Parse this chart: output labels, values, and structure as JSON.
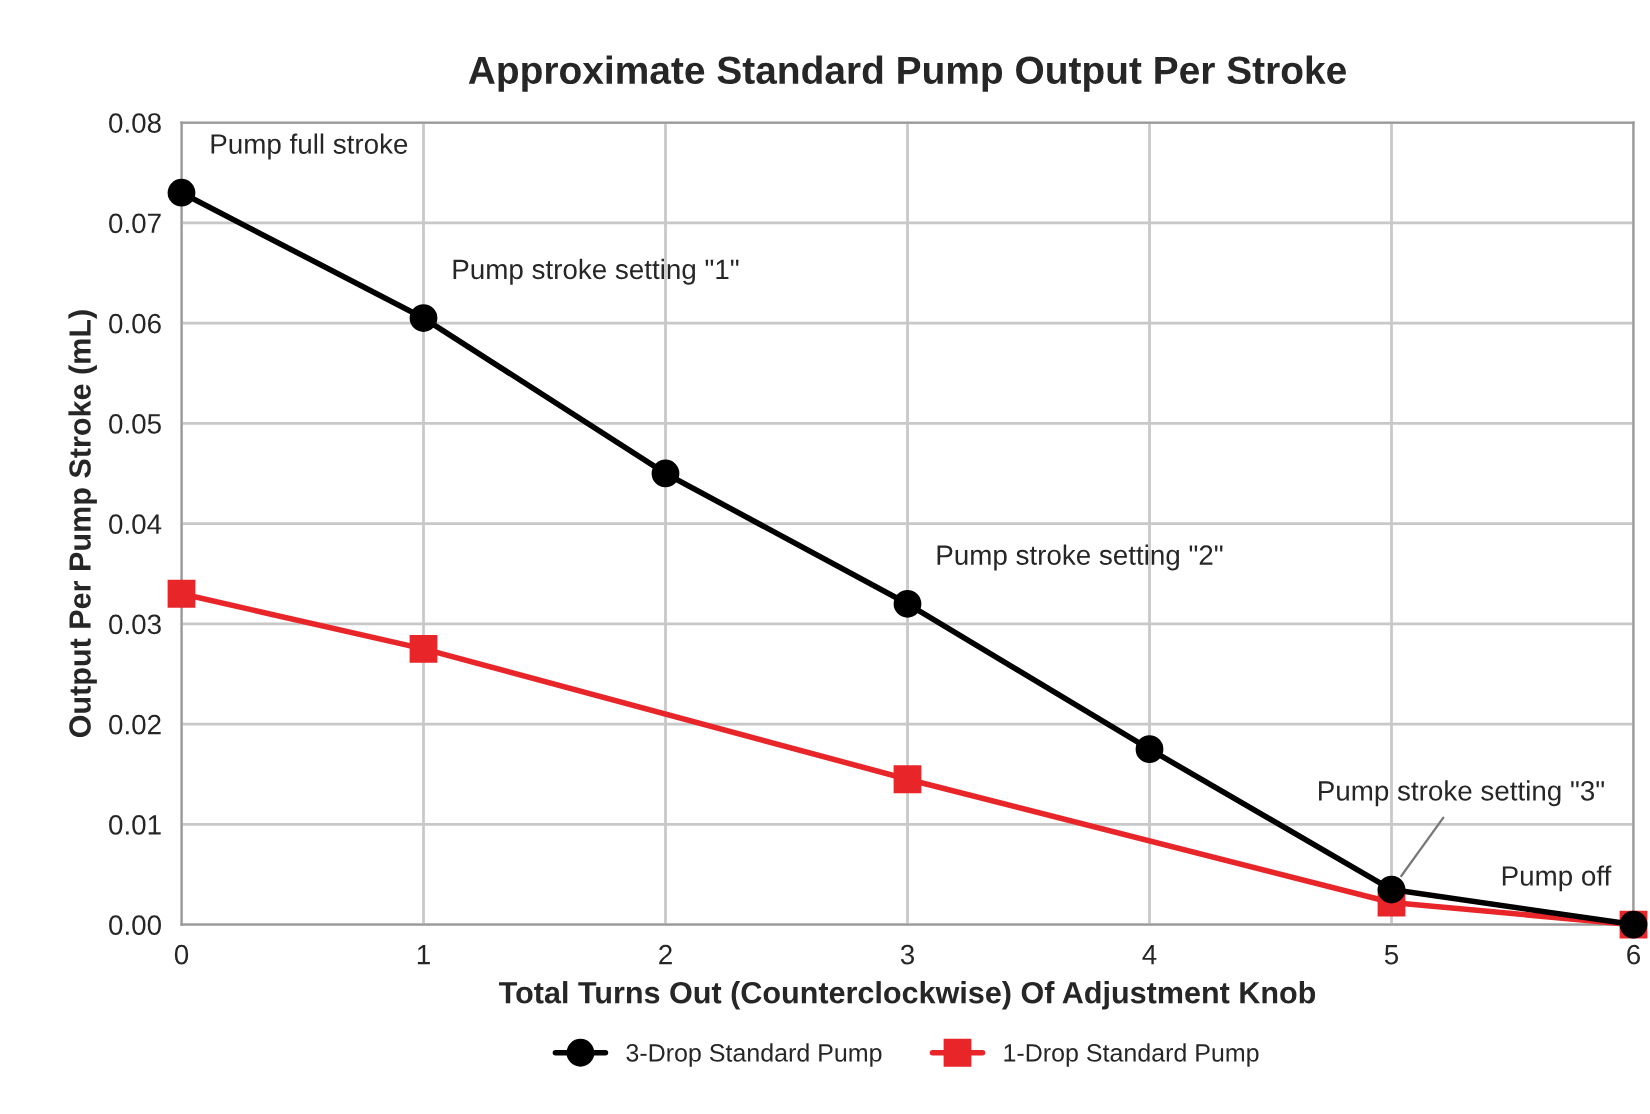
{
  "chart_data": {
    "type": "line",
    "title": "Approximate Standard Pump Output Per Stroke",
    "xlabel": "Total Turns Out (Counterclockwise) Of Adjustment Knob",
    "ylabel": "Output Per Pump Stroke (mL)",
    "series": [
      {
        "name": "3-Drop Standard Pump",
        "color": "#000000",
        "marker": "circle",
        "x": [
          0,
          1,
          2,
          3,
          4,
          5,
          6
        ],
        "values": [
          0.073,
          0.0605,
          0.045,
          0.032,
          0.0175,
          0.0035,
          0.0
        ]
      },
      {
        "name": "1-Drop Standard Pump",
        "color": "#e8262a",
        "marker": "square",
        "x": [
          0,
          1,
          3,
          5,
          6
        ],
        "values": [
          0.033,
          0.0275,
          0.0145,
          0.0022,
          0.0
        ]
      }
    ],
    "xlim": [
      0,
      6
    ],
    "xticks": [
      0,
      1,
      2,
      3,
      4,
      5,
      6
    ],
    "ylim": [
      0,
      0.08
    ],
    "yticks": [
      {
        "value": 0,
        "label": "0.00"
      },
      {
        "value": 0.01,
        "label": "0.01"
      },
      {
        "value": 0.02,
        "label": "0.02"
      },
      {
        "value": 0.03,
        "label": "0.03"
      },
      {
        "value": 0.04,
        "label": "0.04"
      },
      {
        "value": 0.05,
        "label": "0.05"
      },
      {
        "value": 0.06,
        "label": "0.06"
      },
      {
        "value": 0.07,
        "label": "0.07"
      },
      {
        "value": 0.08,
        "label": "0.08"
      }
    ],
    "annotations": [
      {
        "text": "Pump full stroke",
        "x": 0,
        "y": 0.073
      },
      {
        "text": "Pump stroke setting \"1\"",
        "x": 1,
        "y": 0.0605
      },
      {
        "text": "Pump stroke setting \"2\"",
        "x": 3,
        "y": 0.032
      },
      {
        "text": "Pump stroke setting \"3\"",
        "x": 5,
        "y": 0.0035
      },
      {
        "text": "Pump off",
        "x": 6,
        "y": 0.0
      }
    ],
    "grid": true,
    "legend": "bottom",
    "line_style": "solid"
  }
}
